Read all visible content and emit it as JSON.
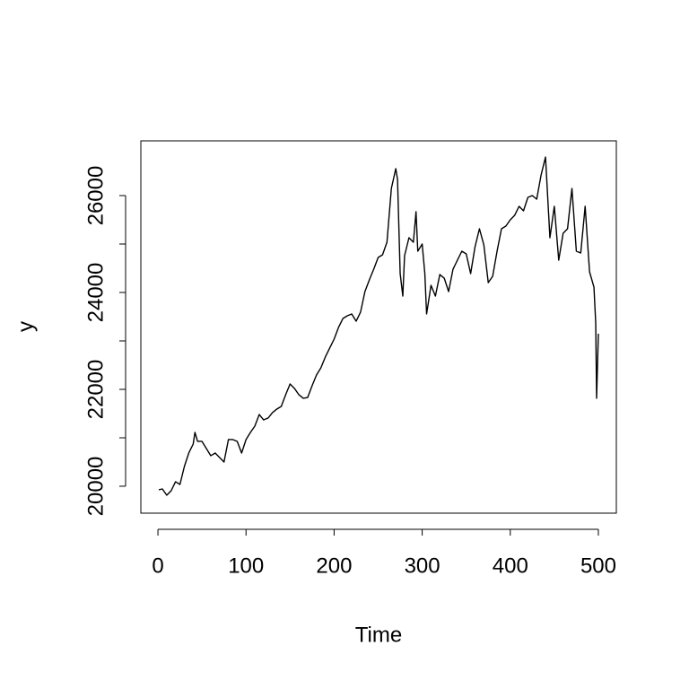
{
  "chart_data": {
    "type": "line",
    "xlabel": "Time",
    "ylabel": "y",
    "x": [
      1,
      5,
      10,
      15,
      20,
      25,
      30,
      35,
      40,
      42,
      45,
      50,
      55,
      60,
      65,
      70,
      75,
      80,
      85,
      90,
      95,
      100,
      105,
      110,
      115,
      120,
      125,
      130,
      135,
      140,
      145,
      150,
      155,
      160,
      165,
      170,
      175,
      180,
      185,
      190,
      195,
      200,
      205,
      210,
      215,
      220,
      225,
      230,
      235,
      240,
      245,
      250,
      255,
      260,
      265,
      270,
      272,
      275,
      278,
      280,
      285,
      290,
      293,
      295,
      300,
      303,
      305,
      310,
      315,
      320,
      325,
      330,
      335,
      340,
      345,
      350,
      355,
      360,
      365,
      370,
      375,
      380,
      385,
      390,
      395,
      400,
      405,
      410,
      415,
      420,
      425,
      430,
      435,
      440,
      445,
      450,
      455,
      460,
      465,
      470,
      475,
      480,
      485,
      490,
      495,
      497,
      498,
      500
    ],
    "values": [
      19926,
      19944,
      19815,
      19907,
      20093,
      20037,
      20407,
      20685,
      20870,
      21111,
      20926,
      20926,
      20778,
      20630,
      20685,
      20593,
      20500,
      20963,
      20963,
      20926,
      20685,
      20963,
      21111,
      21241,
      21481,
      21370,
      21407,
      21519,
      21593,
      21648,
      21889,
      22111,
      22019,
      21889,
      21815,
      21833,
      22074,
      22296,
      22444,
      22667,
      22852,
      23037,
      23278,
      23463,
      23519,
      23556,
      23407,
      23593,
      24019,
      24259,
      24481,
      24722,
      24778,
      25037,
      26148,
      26556,
      26333,
      24389,
      23926,
      24759,
      25130,
      25037,
      25667,
      24852,
      25000,
      24389,
      23556,
      24148,
      23926,
      24370,
      24296,
      24019,
      24481,
      24667,
      24852,
      24796,
      24389,
      24944,
      25315,
      24981,
      24204,
      24333,
      24852,
      25315,
      25370,
      25500,
      25593,
      25778,
      25685,
      25963,
      26000,
      25926,
      26426,
      26796,
      25130,
      25778,
      24667,
      25222,
      25315,
      26148,
      24852,
      24815,
      25778,
      24426,
      24111,
      23370,
      21815,
      23148
    ],
    "color": "#000000",
    "xlim": [
      -19.4,
      520.4
    ],
    "xticks": [
      0,
      100,
      200,
      300,
      400,
      500
    ],
    "ylim": [
      19444,
      27130
    ],
    "yticks": [
      20000,
      21000,
      22000,
      23000,
      24000,
      25000,
      26000
    ]
  }
}
